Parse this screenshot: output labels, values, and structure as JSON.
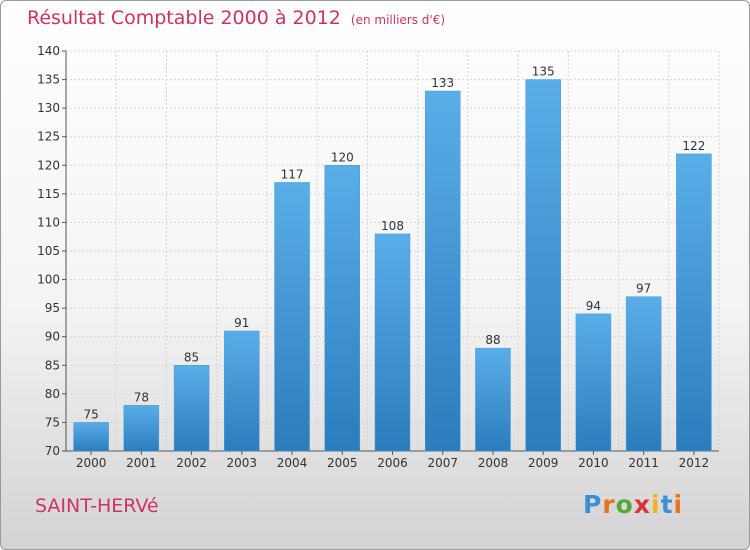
{
  "header": {
    "title": "Résultat Comptable 2000 à 2012",
    "subtitle": "(en milliers d'€)"
  },
  "footer": {
    "town": "SAINT-HERVé",
    "logo_letters": [
      "P",
      "r",
      "o",
      "x",
      "i",
      "t",
      "i"
    ],
    "logo_colors": [
      "#3b8fd6",
      "#e8731a",
      "#57a83a",
      "#d9323c",
      "#f0b21e",
      "#3b8fd6",
      "#e8731a"
    ]
  },
  "colors": {
    "bar_top": "#5aaee8",
    "bar_bottom": "#2b7cbc",
    "accent": "#d0325f"
  },
  "chart_data": {
    "type": "bar",
    "categories": [
      "2000",
      "2001",
      "2002",
      "2003",
      "2004",
      "2005",
      "2006",
      "2007",
      "2008",
      "2009",
      "2010",
      "2011",
      "2012"
    ],
    "values": [
      75,
      78,
      85,
      91,
      117,
      120,
      108,
      133,
      88,
      135,
      94,
      97,
      122
    ],
    "ylim": [
      70,
      140
    ],
    "yticks": [
      70,
      75,
      80,
      85,
      90,
      95,
      100,
      105,
      110,
      115,
      120,
      125,
      130,
      135,
      140
    ],
    "grid": true
  }
}
